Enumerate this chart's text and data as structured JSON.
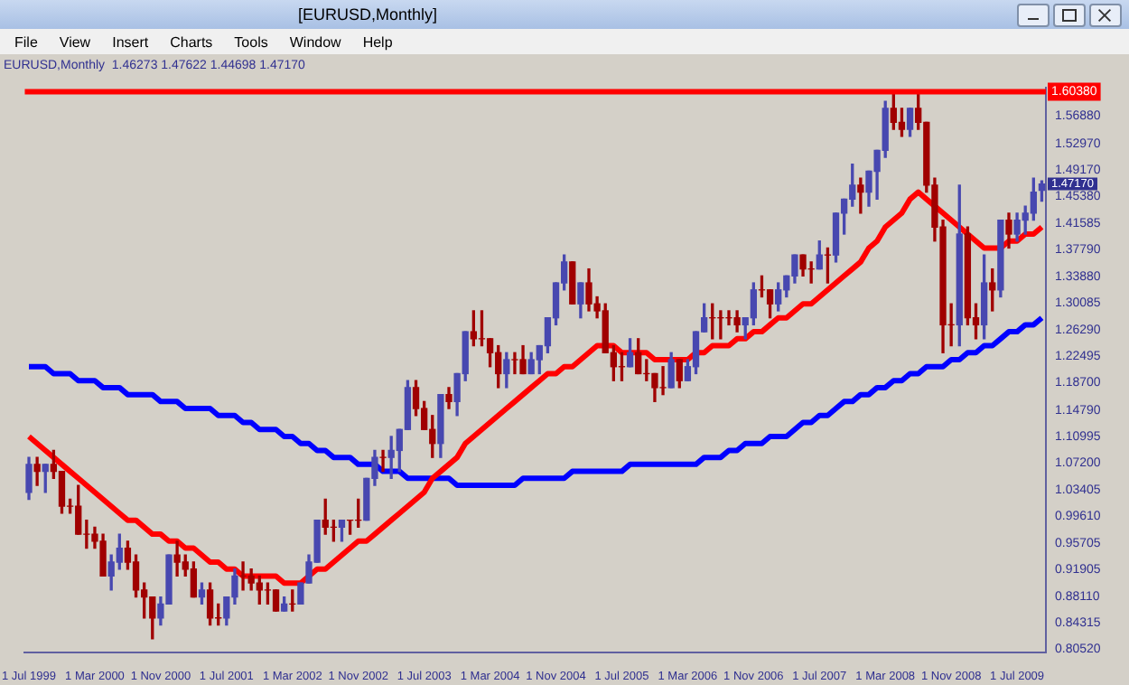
{
  "chart_data": {
    "type": "candlestick",
    "title": "[EURUSD,Monthly]",
    "subtitle": "EURUSD,Monthly  1.46273 1.47622 1.44698 1.47170",
    "annotations": [
      "File",
      "View",
      "Insert",
      "Charts",
      "Tools",
      "Window",
      "Help",
      "1.47170"
    ],
    "categories": [
      "1 Jul 1999",
      null,
      null,
      null,
      null,
      null,
      null,
      null,
      "1 Mar 2000",
      null,
      null,
      null,
      null,
      null,
      null,
      null,
      "1 Nov 2000",
      null,
      null,
      null,
      null,
      null,
      null,
      null,
      "1 Jul 2001",
      null,
      null,
      null,
      null,
      null,
      null,
      null,
      "1 Mar 2002",
      null,
      null,
      null,
      null,
      null,
      null,
      null,
      "1 Nov 2002",
      null,
      null,
      null,
      null,
      null,
      null,
      null,
      "1 Jul 2003",
      null,
      null,
      null,
      null,
      null,
      null,
      null,
      "1 Mar 2004",
      null,
      null,
      null,
      null,
      null,
      null,
      null,
      "1 Nov 2004",
      null,
      null,
      null,
      null,
      null,
      null,
      null,
      "1 Jul 2005",
      null,
      null,
      null,
      null,
      null,
      null,
      null,
      "1 Mar 2006",
      null,
      null,
      null,
      null,
      null,
      null,
      null,
      "1 Nov 2006",
      null,
      null,
      null,
      null,
      null,
      null,
      null,
      "1 Jul 2007",
      null,
      null,
      null,
      null,
      null,
      null,
      null,
      "1 Mar 2008",
      null,
      null,
      null,
      null,
      null,
      null,
      null,
      "1 Nov 2008",
      null,
      null,
      null,
      null,
      null,
      null,
      null,
      "1 Jul 2009",
      null,
      null,
      null
    ],
    "ohlc": [
      [
        1.03,
        1.08,
        1.02,
        1.07
      ],
      [
        1.07,
        1.08,
        1.04,
        1.06
      ],
      [
        1.06,
        1.07,
        1.03,
        1.07
      ],
      [
        1.07,
        1.09,
        1.05,
        1.06
      ],
      [
        1.06,
        1.06,
        1.0,
        1.01
      ],
      [
        1.01,
        1.02,
        1.0,
        1.01
      ],
      [
        1.01,
        1.04,
        0.97,
        0.97
      ],
      [
        0.97,
        0.99,
        0.95,
        0.97
      ],
      [
        0.97,
        0.98,
        0.95,
        0.96
      ],
      [
        0.96,
        0.97,
        0.91,
        0.91
      ],
      [
        0.91,
        0.94,
        0.89,
        0.93
      ],
      [
        0.93,
        0.97,
        0.92,
        0.95
      ],
      [
        0.95,
        0.96,
        0.92,
        0.93
      ],
      [
        0.93,
        0.94,
        0.88,
        0.89
      ],
      [
        0.89,
        0.9,
        0.85,
        0.88
      ],
      [
        0.88,
        0.88,
        0.82,
        0.85
      ],
      [
        0.85,
        0.88,
        0.84,
        0.87
      ],
      [
        0.87,
        0.94,
        0.87,
        0.94
      ],
      [
        0.94,
        0.96,
        0.91,
        0.93
      ],
      [
        0.93,
        0.94,
        0.91,
        0.92
      ],
      [
        0.92,
        0.93,
        0.88,
        0.88
      ],
      [
        0.88,
        0.9,
        0.87,
        0.89
      ],
      [
        0.89,
        0.9,
        0.84,
        0.85
      ],
      [
        0.85,
        0.87,
        0.84,
        0.85
      ],
      [
        0.85,
        0.88,
        0.84,
        0.88
      ],
      [
        0.88,
        0.92,
        0.87,
        0.91
      ],
      [
        0.91,
        0.93,
        0.89,
        0.91
      ],
      [
        0.91,
        0.92,
        0.89,
        0.9
      ],
      [
        0.9,
        0.91,
        0.87,
        0.89
      ],
      [
        0.89,
        0.9,
        0.87,
        0.89
      ],
      [
        0.89,
        0.89,
        0.86,
        0.86
      ],
      [
        0.86,
        0.88,
        0.86,
        0.87
      ],
      [
        0.87,
        0.89,
        0.86,
        0.87
      ],
      [
        0.87,
        0.9,
        0.87,
        0.9
      ],
      [
        0.9,
        0.94,
        0.9,
        0.93
      ],
      [
        0.93,
        0.99,
        0.93,
        0.99
      ],
      [
        0.99,
        1.02,
        0.97,
        0.98
      ],
      [
        0.98,
        0.99,
        0.96,
        0.98
      ],
      [
        0.98,
        0.99,
        0.96,
        0.99
      ],
      [
        0.99,
        0.99,
        0.97,
        0.99
      ],
      [
        0.99,
        1.02,
        0.98,
        0.99
      ],
      [
        0.99,
        1.05,
        0.99,
        1.05
      ],
      [
        1.05,
        1.09,
        1.04,
        1.08
      ],
      [
        1.08,
        1.09,
        1.06,
        1.08
      ],
      [
        1.08,
        1.11,
        1.05,
        1.09
      ],
      [
        1.09,
        1.12,
        1.06,
        1.12
      ],
      [
        1.12,
        1.19,
        1.12,
        1.18
      ],
      [
        1.18,
        1.19,
        1.14,
        1.15
      ],
      [
        1.15,
        1.16,
        1.12,
        1.12
      ],
      [
        1.12,
        1.14,
        1.08,
        1.1
      ],
      [
        1.1,
        1.17,
        1.08,
        1.17
      ],
      [
        1.17,
        1.18,
        1.15,
        1.16
      ],
      [
        1.16,
        1.2,
        1.14,
        1.2
      ],
      [
        1.2,
        1.26,
        1.19,
        1.26
      ],
      [
        1.26,
        1.29,
        1.24,
        1.25
      ],
      [
        1.25,
        1.29,
        1.24,
        1.25
      ],
      [
        1.25,
        1.25,
        1.21,
        1.23
      ],
      [
        1.23,
        1.24,
        1.18,
        1.2
      ],
      [
        1.2,
        1.23,
        1.18,
        1.22
      ],
      [
        1.22,
        1.23,
        1.2,
        1.22
      ],
      [
        1.22,
        1.24,
        1.2,
        1.2
      ],
      [
        1.2,
        1.23,
        1.2,
        1.22
      ],
      [
        1.22,
        1.24,
        1.2,
        1.24
      ],
      [
        1.24,
        1.28,
        1.23,
        1.28
      ],
      [
        1.28,
        1.33,
        1.27,
        1.33
      ],
      [
        1.33,
        1.37,
        1.32,
        1.36
      ],
      [
        1.36,
        1.36,
        1.3,
        1.3
      ],
      [
        1.3,
        1.33,
        1.28,
        1.33
      ],
      [
        1.33,
        1.35,
        1.29,
        1.3
      ],
      [
        1.3,
        1.31,
        1.28,
        1.29
      ],
      [
        1.29,
        1.3,
        1.23,
        1.23
      ],
      [
        1.23,
        1.24,
        1.19,
        1.21
      ],
      [
        1.21,
        1.23,
        1.19,
        1.21
      ],
      [
        1.21,
        1.25,
        1.21,
        1.23
      ],
      [
        1.23,
        1.25,
        1.2,
        1.2
      ],
      [
        1.2,
        1.22,
        1.19,
        1.2
      ],
      [
        1.2,
        1.2,
        1.16,
        1.18
      ],
      [
        1.18,
        1.21,
        1.17,
        1.18
      ],
      [
        1.18,
        1.23,
        1.18,
        1.22
      ],
      [
        1.22,
        1.22,
        1.18,
        1.19
      ],
      [
        1.19,
        1.22,
        1.19,
        1.21
      ],
      [
        1.21,
        1.26,
        1.2,
        1.26
      ],
      [
        1.26,
        1.3,
        1.26,
        1.28
      ],
      [
        1.28,
        1.3,
        1.25,
        1.28
      ],
      [
        1.28,
        1.29,
        1.25,
        1.28
      ],
      [
        1.28,
        1.29,
        1.27,
        1.28
      ],
      [
        1.28,
        1.29,
        1.26,
        1.27
      ],
      [
        1.27,
        1.28,
        1.25,
        1.28
      ],
      [
        1.28,
        1.33,
        1.27,
        1.32
      ],
      [
        1.32,
        1.34,
        1.31,
        1.32
      ],
      [
        1.32,
        1.32,
        1.28,
        1.3
      ],
      [
        1.3,
        1.33,
        1.29,
        1.32
      ],
      [
        1.32,
        1.34,
        1.31,
        1.34
      ],
      [
        1.34,
        1.37,
        1.33,
        1.37
      ],
      [
        1.37,
        1.37,
        1.34,
        1.35
      ],
      [
        1.35,
        1.36,
        1.33,
        1.35
      ],
      [
        1.35,
        1.39,
        1.35,
        1.37
      ],
      [
        1.37,
        1.38,
        1.33,
        1.37
      ],
      [
        1.37,
        1.43,
        1.36,
        1.43
      ],
      [
        1.43,
        1.45,
        1.4,
        1.45
      ],
      [
        1.45,
        1.5,
        1.44,
        1.47
      ],
      [
        1.47,
        1.48,
        1.43,
        1.46
      ],
      [
        1.46,
        1.49,
        1.44,
        1.49
      ],
      [
        1.49,
        1.52,
        1.45,
        1.52
      ],
      [
        1.52,
        1.59,
        1.51,
        1.58
      ],
      [
        1.58,
        1.6,
        1.55,
        1.56
      ],
      [
        1.56,
        1.58,
        1.54,
        1.55
      ],
      [
        1.55,
        1.58,
        1.54,
        1.58
      ],
      [
        1.58,
        1.6,
        1.55,
        1.56
      ],
      [
        1.56,
        1.56,
        1.46,
        1.47
      ],
      [
        1.47,
        1.48,
        1.39,
        1.41
      ],
      [
        1.41,
        1.42,
        1.23,
        1.27
      ],
      [
        1.27,
        1.3,
        1.24,
        1.27
      ],
      [
        1.27,
        1.47,
        1.24,
        1.4
      ],
      [
        1.4,
        1.41,
        1.27,
        1.28
      ],
      [
        1.28,
        1.3,
        1.25,
        1.27
      ],
      [
        1.27,
        1.37,
        1.25,
        1.33
      ],
      [
        1.33,
        1.35,
        1.29,
        1.32
      ],
      [
        1.32,
        1.42,
        1.31,
        1.42
      ],
      [
        1.42,
        1.43,
        1.38,
        1.4
      ],
      [
        1.4,
        1.43,
        1.39,
        1.42
      ],
      [
        1.42,
        1.44,
        1.4,
        1.43
      ],
      [
        1.43,
        1.48,
        1.42,
        1.46
      ],
      [
        1.46273,
        1.47622,
        1.44698,
        1.4717
      ]
    ],
    "colors": [
      "#4848b0",
      "#a00000",
      "#4848b0",
      "#a00000",
      "#a00000",
      "#a00000",
      "#a00000",
      "#a00000",
      "#a00000",
      "#a00000",
      "#4848b0",
      "#4848b0",
      "#a00000",
      "#a00000",
      "#a00000",
      "#a00000",
      "#4848b0",
      "#4848b0",
      "#a00000",
      "#a00000",
      "#a00000",
      "#4848b0",
      "#a00000",
      "#a00000",
      "#4848b0",
      "#4848b0",
      "#a00000",
      "#a00000",
      "#a00000",
      "#a00000",
      "#a00000",
      "#4848b0",
      "#a00000",
      "#4848b0",
      "#4848b0",
      "#4848b0",
      "#a00000",
      "#a00000",
      "#4848b0",
      "#a00000",
      "#a00000",
      "#4848b0",
      "#4848b0",
      "#a00000",
      "#4848b0",
      "#4848b0",
      "#4848b0",
      "#a00000",
      "#a00000",
      "#a00000",
      "#4848b0",
      "#a00000",
      "#4848b0",
      "#4848b0",
      "#a00000",
      "#a00000",
      "#a00000",
      "#a00000",
      "#4848b0",
      "#a00000",
      "#a00000",
      "#4848b0",
      "#4848b0",
      "#4848b0",
      "#4848b0",
      "#4848b0",
      "#a00000",
      "#4848b0",
      "#a00000",
      "#a00000",
      "#a00000",
      "#a00000",
      "#a00000",
      "#4848b0",
      "#a00000",
      "#a00000",
      "#a00000",
      "#a00000",
      "#4848b0",
      "#a00000",
      "#4848b0",
      "#4848b0",
      "#4848b0",
      "#a00000",
      "#a00000",
      "#a00000",
      "#a00000",
      "#4848b0",
      "#4848b0",
      "#a00000",
      "#a00000",
      "#4848b0",
      "#4848b0",
      "#4848b0",
      "#a00000",
      "#a00000",
      "#4848b0",
      "#a00000",
      "#4848b0",
      "#4848b0",
      "#4848b0",
      "#a00000",
      "#4848b0",
      "#4848b0",
      "#4848b0",
      "#a00000",
      "#a00000",
      "#4848b0",
      "#a00000",
      "#a00000",
      "#a00000",
      "#a00000",
      "#a00000",
      "#4848b0",
      "#a00000",
      "#a00000",
      "#4848b0",
      "#a00000",
      "#4848b0",
      "#a00000",
      "#4848b0",
      "#4848b0",
      "#4848b0",
      "#4848b0"
    ],
    "series": [
      {
        "type": "line",
        "color": "#ff0000",
        "values": [
          1.11,
          1.1,
          1.09,
          1.08,
          1.07,
          1.06,
          1.05,
          1.04,
          1.03,
          1.02,
          1.01,
          1.0,
          0.99,
          0.99,
          0.98,
          0.97,
          0.97,
          0.96,
          0.96,
          0.95,
          0.95,
          0.94,
          0.93,
          0.93,
          0.92,
          0.92,
          0.91,
          0.91,
          0.91,
          0.91,
          0.91,
          0.9,
          0.9,
          0.9,
          0.91,
          0.92,
          0.92,
          0.93,
          0.94,
          0.95,
          0.96,
          0.96,
          0.97,
          0.98,
          0.99,
          1.0,
          1.01,
          1.02,
          1.03,
          1.05,
          1.06,
          1.07,
          1.08,
          1.1,
          1.11,
          1.12,
          1.13,
          1.14,
          1.15,
          1.16,
          1.17,
          1.18,
          1.19,
          1.2,
          1.2,
          1.21,
          1.21,
          1.22,
          1.23,
          1.24,
          1.24,
          1.24,
          1.23,
          1.23,
          1.23,
          1.23,
          1.22,
          1.22,
          1.22,
          1.22,
          1.22,
          1.23,
          1.23,
          1.24,
          1.24,
          1.24,
          1.25,
          1.25,
          1.26,
          1.26,
          1.27,
          1.28,
          1.28,
          1.29,
          1.3,
          1.3,
          1.31,
          1.32,
          1.33,
          1.34,
          1.35,
          1.36,
          1.38,
          1.39,
          1.41,
          1.42,
          1.43,
          1.45,
          1.46,
          1.45,
          1.44,
          1.43,
          1.42,
          1.41,
          1.4,
          1.39,
          1.38,
          1.38,
          1.38,
          1.39,
          1.39,
          1.4,
          1.4,
          1.41
        ]
      },
      {
        "type": "line",
        "color": "#0000ff",
        "values": [
          1.21,
          1.21,
          1.21,
          1.2,
          1.2,
          1.2,
          1.19,
          1.19,
          1.19,
          1.18,
          1.18,
          1.18,
          1.17,
          1.17,
          1.17,
          1.17,
          1.16,
          1.16,
          1.16,
          1.15,
          1.15,
          1.15,
          1.15,
          1.14,
          1.14,
          1.14,
          1.13,
          1.13,
          1.12,
          1.12,
          1.12,
          1.11,
          1.11,
          1.1,
          1.1,
          1.09,
          1.09,
          1.08,
          1.08,
          1.08,
          1.07,
          1.07,
          1.07,
          1.06,
          1.06,
          1.06,
          1.05,
          1.05,
          1.05,
          1.05,
          1.05,
          1.05,
          1.04,
          1.04,
          1.04,
          1.04,
          1.04,
          1.04,
          1.04,
          1.04,
          1.05,
          1.05,
          1.05,
          1.05,
          1.05,
          1.05,
          1.06,
          1.06,
          1.06,
          1.06,
          1.06,
          1.06,
          1.06,
          1.07,
          1.07,
          1.07,
          1.07,
          1.07,
          1.07,
          1.07,
          1.07,
          1.07,
          1.08,
          1.08,
          1.08,
          1.09,
          1.09,
          1.1,
          1.1,
          1.1,
          1.11,
          1.11,
          1.11,
          1.12,
          1.13,
          1.13,
          1.14,
          1.14,
          1.15,
          1.16,
          1.16,
          1.17,
          1.17,
          1.18,
          1.18,
          1.19,
          1.19,
          1.2,
          1.2,
          1.21,
          1.21,
          1.21,
          1.22,
          1.22,
          1.23,
          1.23,
          1.24,
          1.24,
          1.25,
          1.26,
          1.26,
          1.27,
          1.27,
          1.28
        ]
      }
    ],
    "ylim": [
      0.8,
      1.61
    ],
    "yticks": [
      {
        "value": 1.5688,
        "label": "1.56880"
      },
      {
        "value": 1.5297,
        "label": "1.52970"
      },
      {
        "value": 1.4917,
        "label": "1.49170"
      },
      {
        "value": 1.4538,
        "label": "1.45380"
      },
      {
        "value": 1.41585,
        "label": "1.41585"
      },
      {
        "value": 1.3779,
        "label": "1.37790"
      },
      {
        "value": 1.3388,
        "label": "1.33880"
      },
      {
        "value": 1.30085,
        "label": "1.30085"
      },
      {
        "value": 1.2629,
        "label": "1.26290"
      },
      {
        "value": 1.22495,
        "label": "1.22495"
      },
      {
        "value": 1.187,
        "label": "1.18700"
      },
      {
        "value": 1.1479,
        "label": "1.14790"
      },
      {
        "value": 1.10995,
        "label": "1.10995"
      },
      {
        "value": 1.072,
        "label": "1.07200"
      },
      {
        "value": 1.03405,
        "label": "1.03405"
      },
      {
        "value": 0.9961,
        "label": "0.99610"
      },
      {
        "value": 0.95705,
        "label": "0.95705"
      },
      {
        "value": 0.91905,
        "label": "0.91905"
      },
      {
        "value": 0.8811,
        "label": "0.88110"
      },
      {
        "value": 0.84315,
        "label": "0.84315"
      },
      {
        "value": 0.8052,
        "label": "0.80520"
      }
    ],
    "ref_lines": [
      {
        "axis": "y",
        "value": 1.6038,
        "label": "1.60380",
        "color": "#ff0000"
      }
    ]
  }
}
